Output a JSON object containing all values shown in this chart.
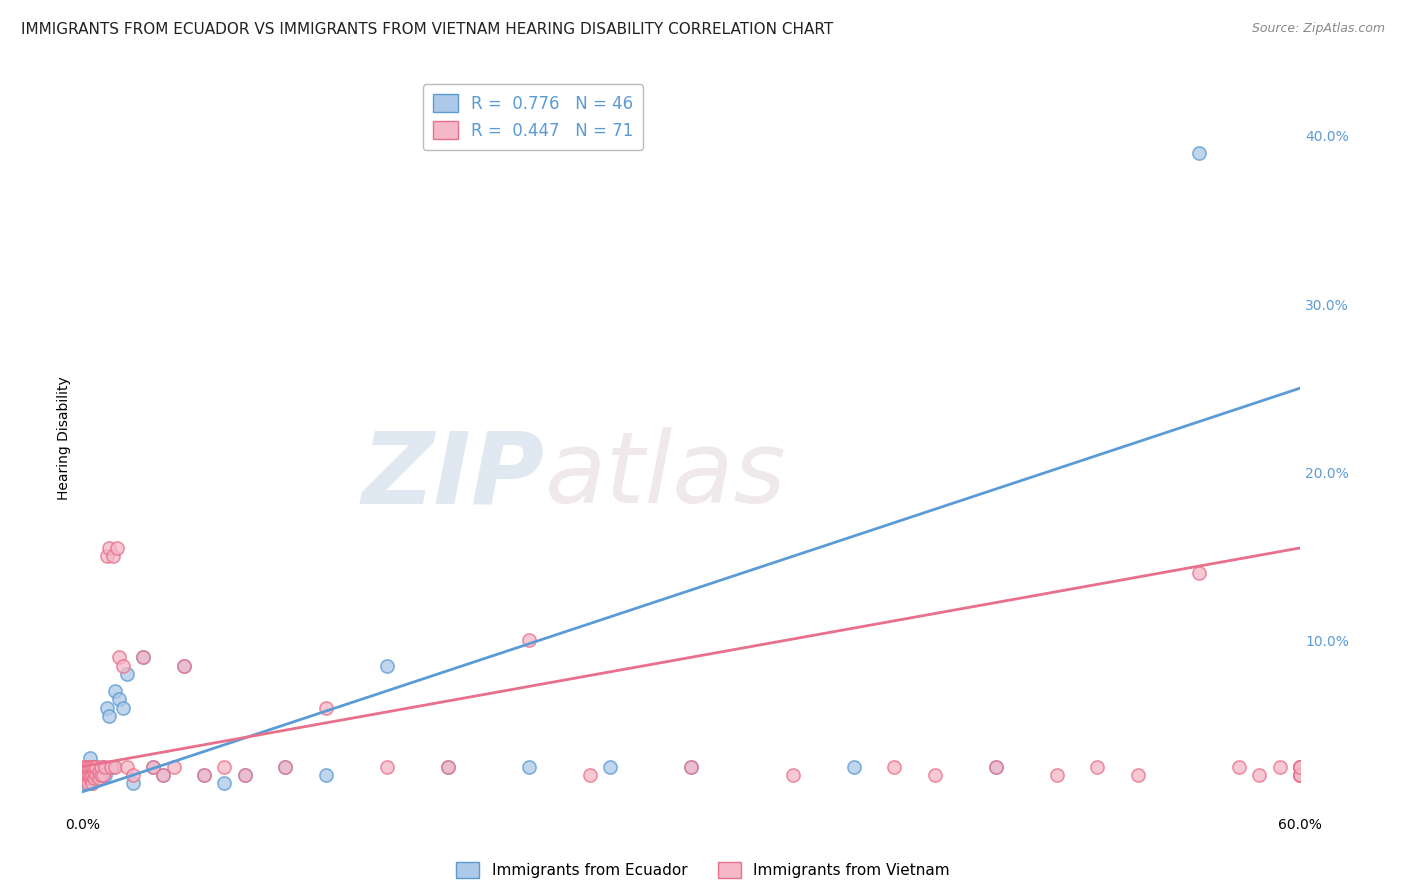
{
  "title": "IMMIGRANTS FROM ECUADOR VS IMMIGRANTS FROM VIETNAM HEARING DISABILITY CORRELATION CHART",
  "source": "Source: ZipAtlas.com",
  "ylabel": "Hearing Disability",
  "xlim": [
    0.0,
    0.6
  ],
  "ylim": [
    0.0,
    0.44
  ],
  "ecuador_color": "#adc8e8",
  "ecuador_line_color": "#5b9bd5",
  "vietnam_color": "#f4b8c8",
  "vietnam_line_color": "#e8708a",
  "R_ecuador": 0.776,
  "N_ecuador": 46,
  "R_vietnam": 0.447,
  "N_vietnam": 71,
  "legend_label_1": "Immigrants from Ecuador",
  "legend_label_2": "Immigrants from Vietnam",
  "watermark_zip": "ZIP",
  "watermark_atlas": "atlas",
  "ecuador_line_x0": 0.0,
  "ecuador_line_y0": 0.01,
  "ecuador_line_x1": 0.6,
  "ecuador_line_y1": 0.25,
  "vietnam_line_x0": 0.0,
  "vietnam_line_y0": 0.025,
  "vietnam_line_x1": 0.6,
  "vietnam_line_y1": 0.155,
  "ecuador_x": [
    0.001,
    0.001,
    0.002,
    0.002,
    0.002,
    0.003,
    0.003,
    0.003,
    0.004,
    0.004,
    0.004,
    0.005,
    0.005,
    0.006,
    0.006,
    0.007,
    0.007,
    0.008,
    0.009,
    0.01,
    0.011,
    0.012,
    0.013,
    0.015,
    0.016,
    0.018,
    0.02,
    0.022,
    0.025,
    0.03,
    0.035,
    0.04,
    0.05,
    0.06,
    0.07,
    0.08,
    0.1,
    0.12,
    0.15,
    0.18,
    0.22,
    0.26,
    0.3,
    0.38,
    0.45,
    0.55
  ],
  "ecuador_y": [
    0.015,
    0.02,
    0.018,
    0.022,
    0.025,
    0.015,
    0.02,
    0.025,
    0.018,
    0.02,
    0.03,
    0.015,
    0.025,
    0.018,
    0.02,
    0.02,
    0.025,
    0.022,
    0.02,
    0.025,
    0.02,
    0.06,
    0.055,
    0.025,
    0.07,
    0.065,
    0.06,
    0.08,
    0.015,
    0.09,
    0.025,
    0.02,
    0.085,
    0.02,
    0.015,
    0.02,
    0.025,
    0.02,
    0.085,
    0.025,
    0.025,
    0.025,
    0.025,
    0.025,
    0.025,
    0.39
  ],
  "vietnam_x": [
    0.001,
    0.001,
    0.002,
    0.002,
    0.002,
    0.003,
    0.003,
    0.003,
    0.004,
    0.004,
    0.004,
    0.005,
    0.005,
    0.005,
    0.006,
    0.006,
    0.006,
    0.007,
    0.007,
    0.008,
    0.008,
    0.009,
    0.009,
    0.01,
    0.011,
    0.012,
    0.013,
    0.014,
    0.015,
    0.016,
    0.017,
    0.018,
    0.02,
    0.022,
    0.025,
    0.03,
    0.035,
    0.04,
    0.045,
    0.05,
    0.06,
    0.07,
    0.08,
    0.1,
    0.12,
    0.15,
    0.18,
    0.22,
    0.25,
    0.3,
    0.35,
    0.4,
    0.42,
    0.45,
    0.48,
    0.5,
    0.52,
    0.55,
    0.57,
    0.58,
    0.59,
    0.6,
    0.6,
    0.6,
    0.6,
    0.6,
    0.6,
    0.6,
    0.6,
    0.6,
    0.6
  ],
  "vietnam_y": [
    0.02,
    0.025,
    0.018,
    0.022,
    0.025,
    0.015,
    0.02,
    0.025,
    0.018,
    0.02,
    0.025,
    0.015,
    0.02,
    0.025,
    0.018,
    0.022,
    0.025,
    0.02,
    0.025,
    0.018,
    0.022,
    0.02,
    0.025,
    0.02,
    0.025,
    0.15,
    0.155,
    0.025,
    0.15,
    0.025,
    0.155,
    0.09,
    0.085,
    0.025,
    0.02,
    0.09,
    0.025,
    0.02,
    0.025,
    0.085,
    0.02,
    0.025,
    0.02,
    0.025,
    0.06,
    0.025,
    0.025,
    0.1,
    0.02,
    0.025,
    0.02,
    0.025,
    0.02,
    0.025,
    0.02,
    0.025,
    0.02,
    0.14,
    0.025,
    0.02,
    0.025,
    0.02,
    0.025,
    0.02,
    0.025,
    0.02,
    0.025,
    0.02,
    0.025,
    0.02,
    0.025
  ],
  "background_color": "#ffffff",
  "grid_color": "#d0d0d0",
  "title_fontsize": 11,
  "axis_label_fontsize": 10,
  "tick_fontsize": 10,
  "legend_fontsize": 12,
  "right_tick_color": "#5b9bd5"
}
